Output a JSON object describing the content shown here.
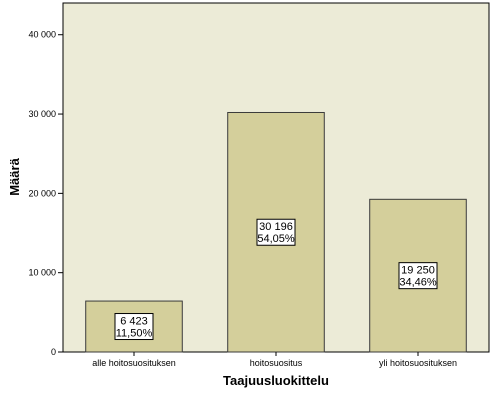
{
  "chart_data": {
    "type": "bar",
    "title": "",
    "xlabel": "Taajuusluokittelu",
    "ylabel": "Määrä",
    "categories": [
      "alle hoitosuosituksen",
      "hoitosuositus",
      "yli hoitosuosituksen"
    ],
    "values": [
      6423,
      30196,
      19250
    ],
    "data_labels": [
      {
        "count": "6 423",
        "percent": "11,50%"
      },
      {
        "count": "30 196",
        "percent": "54,05%"
      },
      {
        "count": "19 250",
        "percent": "34,46%"
      }
    ],
    "yticks": [
      0,
      10000,
      20000,
      30000,
      40000
    ],
    "ytick_labels": [
      "0",
      "10 000",
      "20 000",
      "30 000",
      "40 000"
    ],
    "ylim": [
      0,
      44000
    ],
    "grid": false,
    "legend": "none",
    "colors": {
      "plot_background": "#ecebd7",
      "bar_fill": "#d4cf9b",
      "bar_stroke": "#3a3a3a",
      "axis": "#000000",
      "label_box": "#ffffff"
    }
  }
}
